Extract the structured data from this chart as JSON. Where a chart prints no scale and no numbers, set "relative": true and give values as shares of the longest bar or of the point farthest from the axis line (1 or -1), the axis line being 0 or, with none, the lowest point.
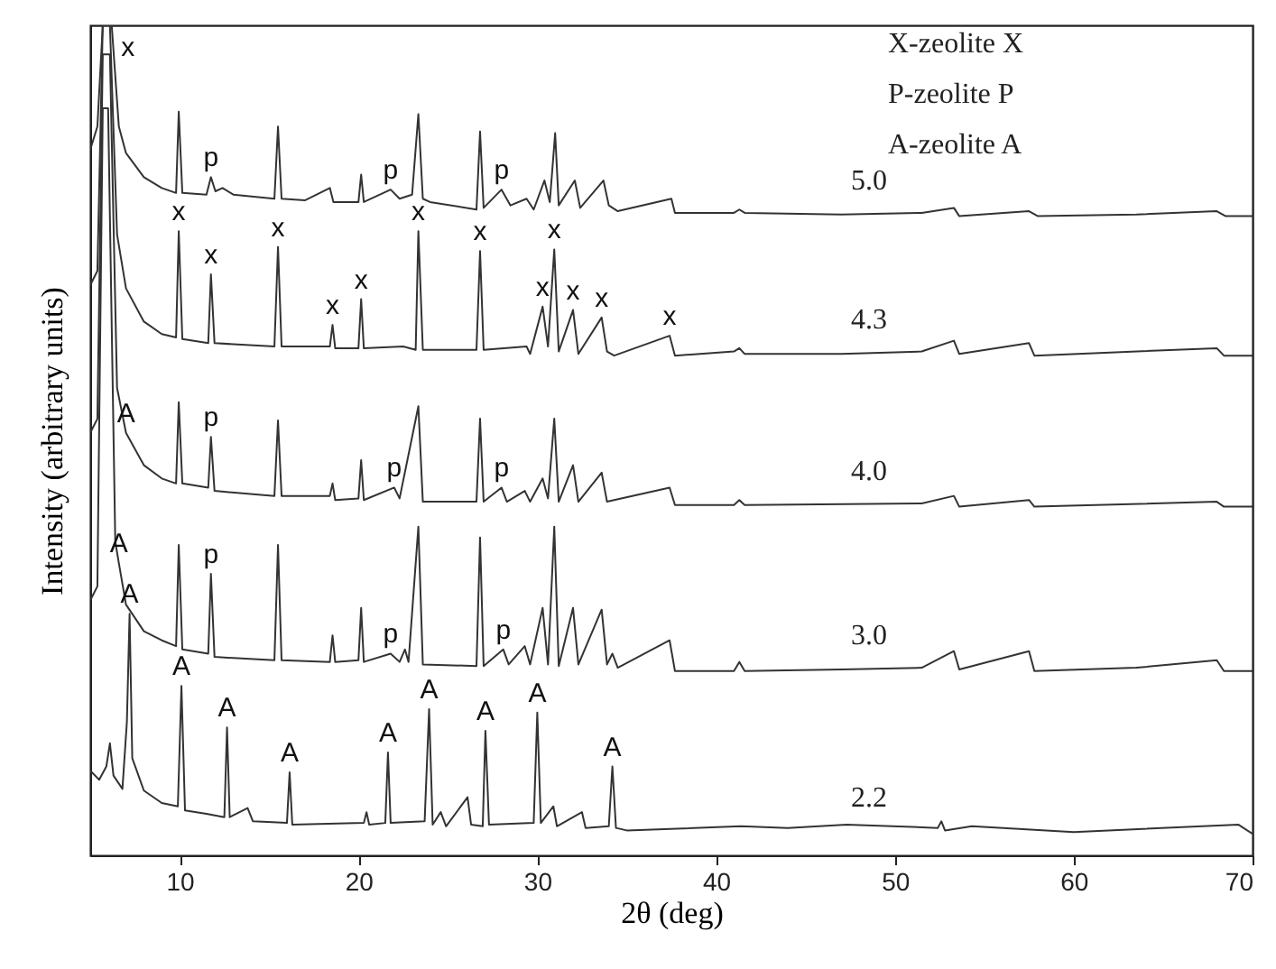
{
  "chart_data": {
    "type": "line",
    "relative": true,
    "xlabel": "2θ (deg)",
    "ylabel": "Intensity (arbitrary units)",
    "xlim": [
      5,
      70
    ],
    "xticks": [
      10,
      20,
      30,
      40,
      50,
      60,
      70
    ],
    "grid": false,
    "series": [
      {
        "name": "5.0",
        "color": "#333333",
        "x": [
          5.0,
          5.4,
          5.7,
          6.0,
          6.2,
          6.6,
          7.0,
          8.0,
          9.0,
          9.8,
          9.95,
          10.15,
          11.5,
          11.75,
          12.0,
          12.4,
          13,
          15.3,
          15.5,
          15.7,
          17,
          18.4,
          18.6,
          20.0,
          20.15,
          20.3,
          21.8,
          22.3,
          23.0,
          23.35,
          23.6,
          24.0,
          26.6,
          26.8,
          27.0,
          28.0,
          28.5,
          29.4,
          29.8,
          30.4,
          30.7,
          31.0,
          31.2,
          32.1,
          32.4,
          33.7,
          34.0,
          34.5,
          37.5,
          37.7,
          41,
          41.3,
          41.6,
          47,
          51.5,
          53.3,
          53.6,
          57.5,
          58,
          63.5,
          68,
          68.5,
          70
        ],
        "values": [
          0.85,
          0.878,
          1.0,
          1.0,
          1.0,
          0.878,
          0.846,
          0.817,
          0.804,
          0.798,
          0.896,
          0.798,
          0.796,
          0.817,
          0.8,
          0.804,
          0.796,
          0.791,
          0.878,
          0.791,
          0.789,
          0.804,
          0.787,
          0.787,
          0.82,
          0.787,
          0.802,
          0.791,
          0.796,
          0.893,
          0.791,
          0.787,
          0.778,
          0.872,
          0.78,
          0.802,
          0.783,
          0.791,
          0.778,
          0.813,
          0.787,
          0.87,
          0.783,
          0.813,
          0.78,
          0.813,
          0.783,
          0.776,
          0.791,
          0.774,
          0.774,
          0.778,
          0.774,
          0.772,
          0.774,
          0.78,
          0.77,
          0.776,
          0.77,
          0.772,
          0.776,
          0.77,
          0.77
        ]
      },
      {
        "name": "4.3",
        "color": "#333333",
        "x": [
          5.0,
          5.4,
          5.7,
          6.1,
          6.5,
          7,
          8,
          9,
          9.8,
          9.95,
          10.15,
          11.6,
          11.75,
          11.95,
          15.3,
          15.5,
          15.7,
          18.4,
          18.55,
          18.7,
          20.0,
          20.15,
          20.3,
          22.5,
          23.2,
          23.35,
          23.6,
          26.6,
          26.8,
          27.0,
          29.4,
          29.6,
          30.3,
          30.6,
          30.95,
          31.2,
          32.0,
          32.3,
          33.6,
          33.9,
          34.3,
          37.4,
          37.7,
          41,
          41.3,
          41.6,
          47,
          51.5,
          53.3,
          53.6,
          57.5,
          57.8,
          68,
          68.4,
          70
        ],
        "values": [
          0.687,
          0.704,
          1.0,
          1.0,
          0.748,
          0.683,
          0.643,
          0.628,
          0.624,
          0.752,
          0.622,
          0.617,
          0.7,
          0.617,
          0.613,
          0.733,
          0.613,
          0.613,
          0.639,
          0.611,
          0.611,
          0.67,
          0.611,
          0.613,
          0.609,
          0.752,
          0.609,
          0.609,
          0.728,
          0.609,
          0.613,
          0.604,
          0.661,
          0.613,
          0.73,
          0.607,
          0.657,
          0.604,
          0.648,
          0.607,
          0.602,
          0.626,
          0.602,
          0.607,
          0.611,
          0.604,
          0.604,
          0.607,
          0.62,
          0.604,
          0.617,
          0.602,
          0.611,
          0.602,
          0.602
        ]
      },
      {
        "name": "4.0",
        "color": "#333333",
        "x": [
          5.0,
          5.4,
          5.7,
          6.1,
          6.5,
          7,
          8,
          9,
          9.8,
          9.95,
          10.15,
          11.6,
          11.75,
          11.95,
          15.3,
          15.5,
          15.7,
          18.4,
          18.55,
          18.7,
          20.0,
          20.15,
          20.3,
          22.0,
          22.3,
          23.35,
          23.6,
          26.6,
          26.8,
          27.0,
          28.0,
          28.3,
          29.3,
          29.6,
          30.3,
          30.6,
          30.95,
          31.2,
          32.0,
          32.3,
          33.6,
          33.9,
          37.4,
          37.7,
          41,
          41.3,
          41.6,
          51.5,
          53.3,
          53.6,
          57.5,
          57.8,
          68,
          68.4,
          70
        ],
        "values": [
          0.509,
          0.526,
          0.965,
          0.965,
          0.563,
          0.509,
          0.47,
          0.454,
          0.448,
          0.546,
          0.448,
          0.443,
          0.504,
          0.439,
          0.433,
          0.524,
          0.433,
          0.433,
          0.448,
          0.428,
          0.43,
          0.476,
          0.428,
          0.443,
          0.43,
          0.541,
          0.426,
          0.426,
          0.526,
          0.426,
          0.443,
          0.426,
          0.439,
          0.426,
          0.454,
          0.43,
          0.526,
          0.426,
          0.47,
          0.426,
          0.461,
          0.426,
          0.443,
          0.422,
          0.422,
          0.428,
          0.422,
          0.424,
          0.433,
          0.42,
          0.428,
          0.42,
          0.426,
          0.42,
          0.42
        ]
      },
      {
        "name": "3.0",
        "color": "#333333",
        "x": [
          5.0,
          5.4,
          5.7,
          6.0,
          6.4,
          6.6,
          7,
          8,
          9,
          9.8,
          9.95,
          10.15,
          11.6,
          11.75,
          11.95,
          15.3,
          15.5,
          15.7,
          18.4,
          18.55,
          18.7,
          20.0,
          20.15,
          20.3,
          21.8,
          22.3,
          22.6,
          22.8,
          23.35,
          23.6,
          26.6,
          26.8,
          27.0,
          28.1,
          28.4,
          29.3,
          29.6,
          30.3,
          30.6,
          30.95,
          31.2,
          32.0,
          32.3,
          33.6,
          33.9,
          34.2,
          34.5,
          37.4,
          37.7,
          41,
          41.3,
          41.6,
          47,
          51.5,
          53.3,
          53.6,
          57.5,
          57.8,
          63.5,
          68,
          68.4,
          70
        ],
        "values": [
          0.307,
          0.324,
          0.9,
          0.9,
          0.378,
          0.352,
          0.302,
          0.27,
          0.259,
          0.252,
          0.374,
          0.248,
          0.243,
          0.339,
          0.239,
          0.235,
          0.374,
          0.235,
          0.233,
          0.265,
          0.233,
          0.235,
          0.298,
          0.233,
          0.243,
          0.233,
          0.248,
          0.233,
          0.396,
          0.23,
          0.228,
          0.383,
          0.228,
          0.248,
          0.23,
          0.252,
          0.23,
          0.298,
          0.23,
          0.396,
          0.228,
          0.298,
          0.23,
          0.296,
          0.23,
          0.243,
          0.226,
          0.259,
          0.222,
          0.222,
          0.233,
          0.222,
          0.224,
          0.226,
          0.246,
          0.224,
          0.246,
          0.222,
          0.226,
          0.235,
          0.222,
          0.222
        ]
      },
      {
        "name": "2.2",
        "color": "#333333",
        "x": [
          5.0,
          5.5,
          5.9,
          6.1,
          6.3,
          6.8,
          7.05,
          7.2,
          7.35,
          8,
          9,
          9.9,
          10.1,
          10.3,
          11.5,
          12.5,
          12.65,
          12.8,
          13.8,
          14.1,
          16.0,
          16.15,
          16.3,
          20.3,
          20.45,
          20.6,
          21.5,
          21.65,
          21.8,
          23.7,
          23.95,
          24.15,
          24.6,
          24.9,
          26.1,
          26.3,
          26.95,
          27.1,
          27.3,
          29.8,
          30.0,
          30.2,
          30.9,
          31.1,
          32.5,
          32.7,
          34.0,
          34.2,
          34.4,
          35,
          41.4,
          44,
          47.3,
          52.4,
          52.6,
          52.8,
          54.3,
          60,
          69.2,
          70
        ],
        "values": [
          0.102,
          0.091,
          0.107,
          0.135,
          0.096,
          0.08,
          0.161,
          0.291,
          0.117,
          0.078,
          0.063,
          0.059,
          0.204,
          0.054,
          0.05,
          0.046,
          0.154,
          0.046,
          0.057,
          0.041,
          0.039,
          0.1,
          0.037,
          0.039,
          0.052,
          0.037,
          0.039,
          0.124,
          0.039,
          0.041,
          0.176,
          0.037,
          0.052,
          0.035,
          0.07,
          0.037,
          0.035,
          0.15,
          0.037,
          0.039,
          0.172,
          0.039,
          0.059,
          0.035,
          0.052,
          0.033,
          0.035,
          0.107,
          0.033,
          0.03,
          0.035,
          0.033,
          0.037,
          0.033,
          0.041,
          0.03,
          0.035,
          0.028,
          0.037,
          0.026
        ]
      }
    ],
    "annotations": [
      "X-zeolite X",
      "P-zeolite  P",
      "A-zeolite A",
      {
        "text": "x",
        "x": 6.2,
        "y": 1.0
      },
      {
        "text": "p",
        "x": 11.75,
        "y": 0.817
      },
      {
        "text": "p",
        "x": 21.8,
        "y": 0.802
      },
      {
        "text": "p",
        "x": 28.0,
        "y": 0.802
      },
      {
        "text": "x",
        "x": 9.95,
        "y": 0.752
      },
      {
        "text": "x",
        "x": 11.75,
        "y": 0.7
      },
      {
        "text": "x",
        "x": 15.5,
        "y": 0.733
      },
      {
        "text": "x",
        "x": 18.55,
        "y": 0.639
      },
      {
        "text": "x",
        "x": 20.15,
        "y": 0.67
      },
      {
        "text": "x",
        "x": 23.35,
        "y": 0.752
      },
      {
        "text": "x",
        "x": 26.8,
        "y": 0.728
      },
      {
        "text": "x",
        "x": 30.3,
        "y": 0.661
      },
      {
        "text": "x",
        "x": 30.95,
        "y": 0.73
      },
      {
        "text": "x",
        "x": 32.0,
        "y": 0.657
      },
      {
        "text": "x",
        "x": 33.6,
        "y": 0.648
      },
      {
        "text": "x",
        "x": 37.4,
        "y": 0.626
      },
      {
        "text": "A",
        "x": 7.0,
        "y": 0.509
      },
      {
        "text": "p",
        "x": 11.75,
        "y": 0.504
      },
      {
        "text": "p",
        "x": 22.0,
        "y": 0.443
      },
      {
        "text": "p",
        "x": 28.0,
        "y": 0.443
      },
      {
        "text": "A",
        "x": 6.6,
        "y": 0.352
      },
      {
        "text": "p",
        "x": 11.75,
        "y": 0.339
      },
      {
        "text": "p",
        "x": 21.8,
        "y": 0.243
      },
      {
        "text": "p",
        "x": 28.1,
        "y": 0.248
      },
      {
        "text": "A",
        "x": 7.2,
        "y": 0.291
      },
      {
        "text": "A",
        "x": 10.1,
        "y": 0.204
      },
      {
        "text": "A",
        "x": 12.65,
        "y": 0.154
      },
      {
        "text": "A",
        "x": 16.15,
        "y": 0.1
      },
      {
        "text": "A",
        "x": 21.65,
        "y": 0.124
      },
      {
        "text": "A",
        "x": 23.95,
        "y": 0.176
      },
      {
        "text": "A",
        "x": 27.1,
        "y": 0.15
      },
      {
        "text": "A",
        "x": 30.0,
        "y": 0.172
      },
      {
        "text": "A",
        "x": 34.2,
        "y": 0.107
      }
    ]
  }
}
